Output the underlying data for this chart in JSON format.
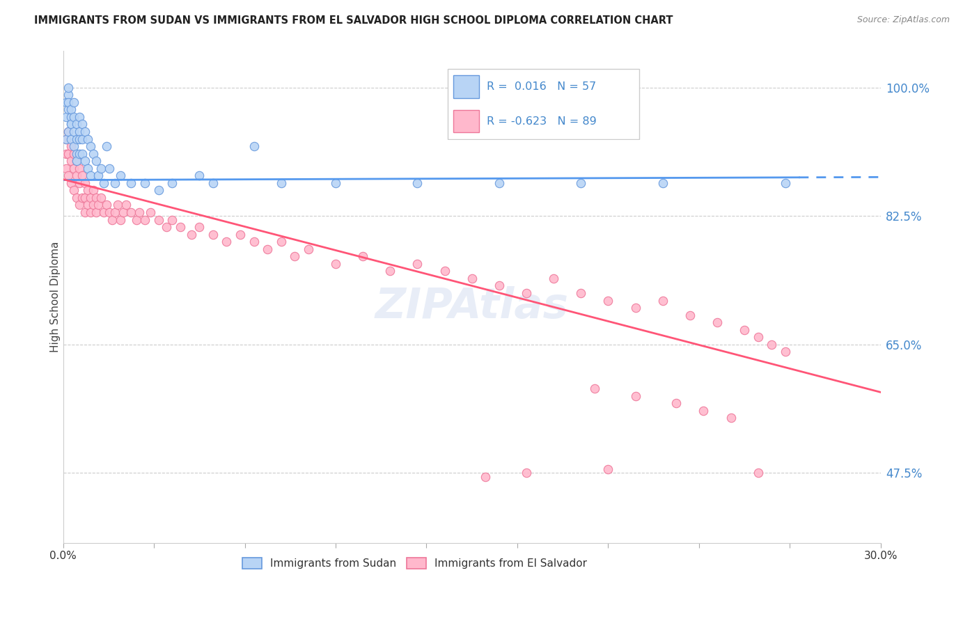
{
  "title": "IMMIGRANTS FROM SUDAN VS IMMIGRANTS FROM EL SALVADOR HIGH SCHOOL DIPLOMA CORRELATION CHART",
  "source": "Source: ZipAtlas.com",
  "ylabel": "High School Diploma",
  "yticks": [
    0.475,
    0.65,
    0.825,
    1.0
  ],
  "ytick_labels": [
    "47.5%",
    "65.0%",
    "82.5%",
    "100.0%"
  ],
  "R1": 0.016,
  "N1": 57,
  "R2": -0.623,
  "N2": 89,
  "color_sudan": "#b8d4f5",
  "color_elsalvador": "#ffb8cc",
  "color_sudan_line": "#5599ee",
  "color_elsalvador_line": "#ff5577",
  "sudan_x": [
    0.001,
    0.001,
    0.001,
    0.002,
    0.002,
    0.002,
    0.002,
    0.002,
    0.003,
    0.003,
    0.003,
    0.003,
    0.003,
    0.004,
    0.004,
    0.004,
    0.004,
    0.005,
    0.005,
    0.005,
    0.005,
    0.006,
    0.006,
    0.006,
    0.006,
    0.007,
    0.007,
    0.007,
    0.008,
    0.008,
    0.009,
    0.009,
    0.01,
    0.01,
    0.011,
    0.012,
    0.013,
    0.014,
    0.015,
    0.016,
    0.017,
    0.019,
    0.021,
    0.025,
    0.03,
    0.035,
    0.04,
    0.05,
    0.055,
    0.07,
    0.08,
    0.1,
    0.13,
    0.16,
    0.19,
    0.22,
    0.265
  ],
  "sudan_y": [
    0.93,
    0.96,
    0.98,
    0.94,
    0.97,
    0.99,
    1.0,
    0.98,
    0.95,
    0.96,
    0.97,
    0.93,
    0.95,
    0.94,
    0.96,
    0.98,
    0.92,
    0.95,
    0.93,
    0.91,
    0.9,
    0.96,
    0.94,
    0.93,
    0.91,
    0.95,
    0.93,
    0.91,
    0.94,
    0.9,
    0.93,
    0.89,
    0.92,
    0.88,
    0.91,
    0.9,
    0.88,
    0.89,
    0.87,
    0.92,
    0.89,
    0.87,
    0.88,
    0.87,
    0.87,
    0.86,
    0.87,
    0.88,
    0.87,
    0.92,
    0.87,
    0.87,
    0.87,
    0.87,
    0.87,
    0.87,
    0.87
  ],
  "elsalvador_x": [
    0.001,
    0.001,
    0.001,
    0.002,
    0.002,
    0.002,
    0.003,
    0.003,
    0.003,
    0.004,
    0.004,
    0.004,
    0.005,
    0.005,
    0.005,
    0.006,
    0.006,
    0.006,
    0.007,
    0.007,
    0.008,
    0.008,
    0.008,
    0.009,
    0.009,
    0.01,
    0.01,
    0.011,
    0.011,
    0.012,
    0.012,
    0.013,
    0.014,
    0.015,
    0.016,
    0.017,
    0.018,
    0.019,
    0.02,
    0.021,
    0.022,
    0.023,
    0.025,
    0.027,
    0.028,
    0.03,
    0.032,
    0.035,
    0.038,
    0.04,
    0.043,
    0.047,
    0.05,
    0.055,
    0.06,
    0.065,
    0.07,
    0.075,
    0.08,
    0.085,
    0.09,
    0.1,
    0.11,
    0.12,
    0.13,
    0.14,
    0.15,
    0.16,
    0.17,
    0.18,
    0.19,
    0.2,
    0.21,
    0.22,
    0.23,
    0.24,
    0.25,
    0.255,
    0.26,
    0.265,
    0.195,
    0.21,
    0.225,
    0.235,
    0.245,
    0.255,
    0.2,
    0.17,
    0.155
  ],
  "elsalvador_y": [
    0.93,
    0.91,
    0.89,
    0.94,
    0.91,
    0.88,
    0.92,
    0.9,
    0.87,
    0.91,
    0.89,
    0.86,
    0.9,
    0.88,
    0.85,
    0.89,
    0.87,
    0.84,
    0.88,
    0.85,
    0.87,
    0.85,
    0.83,
    0.86,
    0.84,
    0.85,
    0.83,
    0.86,
    0.84,
    0.85,
    0.83,
    0.84,
    0.85,
    0.83,
    0.84,
    0.83,
    0.82,
    0.83,
    0.84,
    0.82,
    0.83,
    0.84,
    0.83,
    0.82,
    0.83,
    0.82,
    0.83,
    0.82,
    0.81,
    0.82,
    0.81,
    0.8,
    0.81,
    0.8,
    0.79,
    0.8,
    0.79,
    0.78,
    0.79,
    0.77,
    0.78,
    0.76,
    0.77,
    0.75,
    0.76,
    0.75,
    0.74,
    0.73,
    0.72,
    0.74,
    0.72,
    0.71,
    0.7,
    0.71,
    0.69,
    0.68,
    0.67,
    0.66,
    0.65,
    0.64,
    0.59,
    0.58,
    0.57,
    0.56,
    0.55,
    0.475,
    0.48,
    0.475,
    0.47
  ]
}
